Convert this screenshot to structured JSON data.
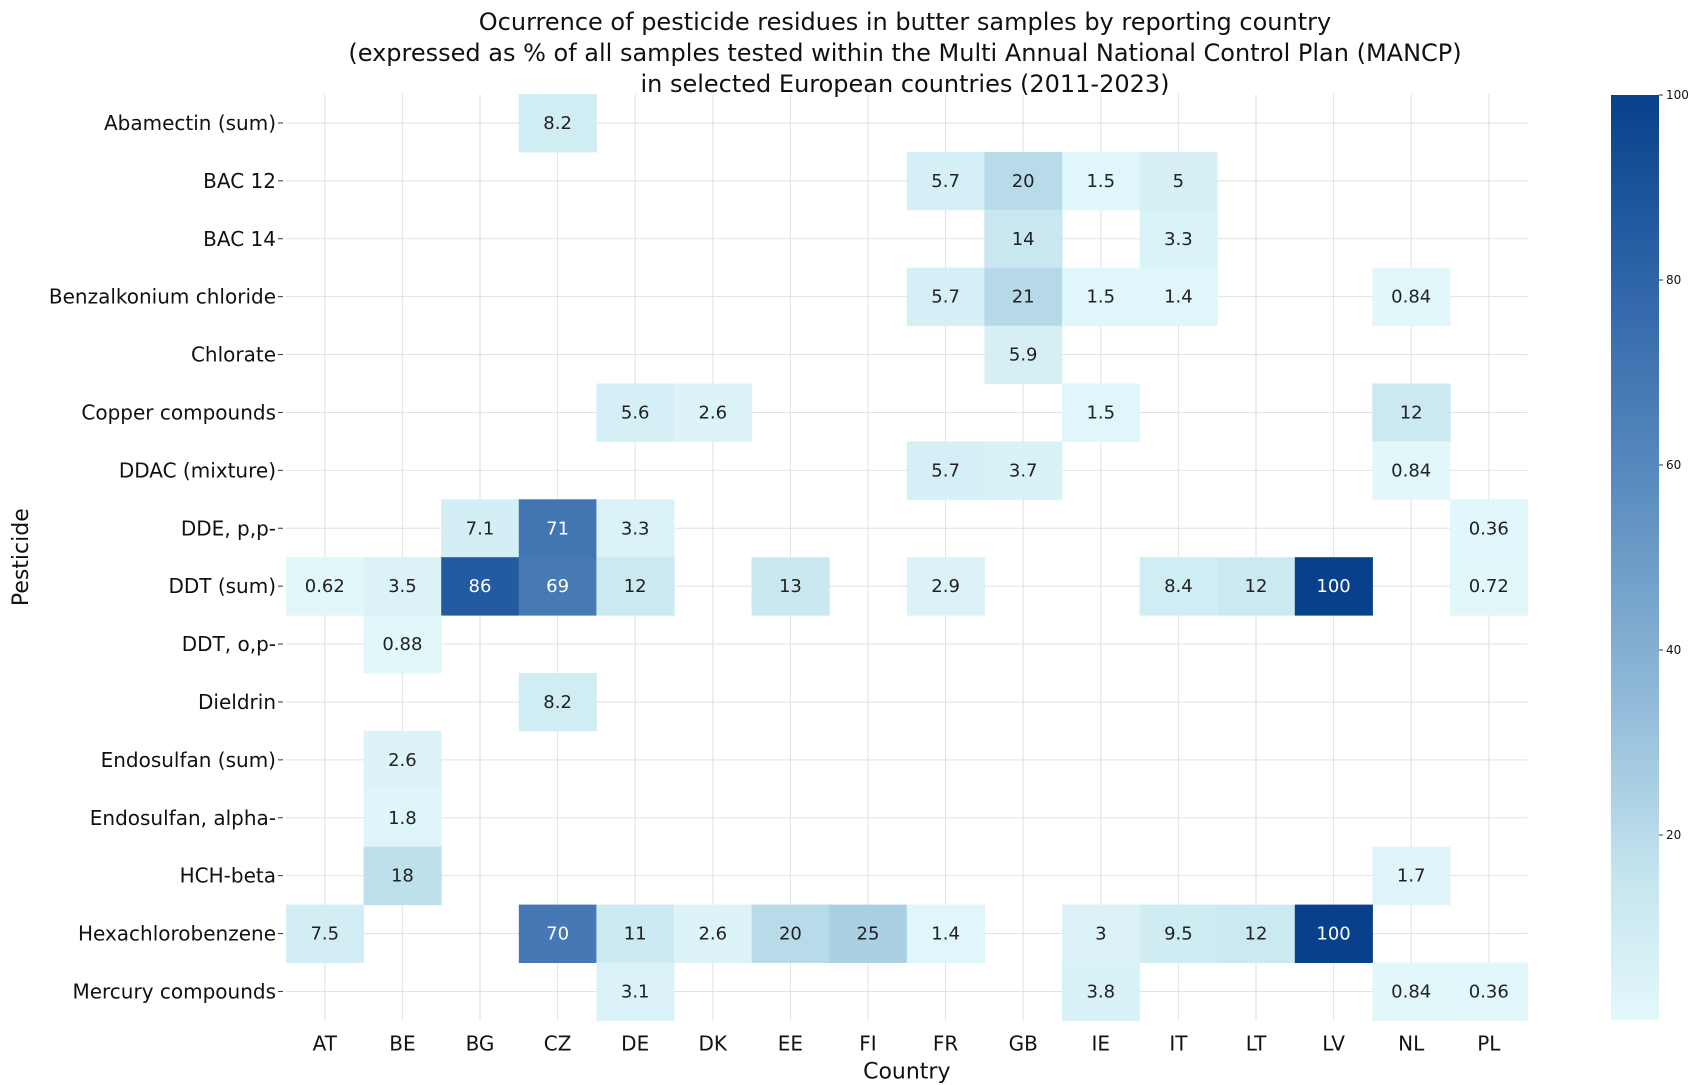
{
  "chart_data": {
    "type": "heatmap",
    "title": [
      "Ocurrence of pesticide residues in butter samples by reporting country",
      "(expressed as % of all samples tested within the Multi Annual National Control Plan (MANCP)",
      "in selected European countries (2011-2023)"
    ],
    "xlabel": "Country",
    "ylabel": "Pesticide",
    "x_categories": [
      "AT",
      "BE",
      "BG",
      "CZ",
      "DE",
      "DK",
      "EE",
      "FI",
      "FR",
      "GB",
      "IE",
      "IT",
      "LT",
      "LV",
      "NL",
      "PL"
    ],
    "y_categories": [
      "Abamectin (sum)",
      "BAC 12",
      "BAC 14",
      "Benzalkonium chloride",
      "Chlorate",
      "Copper compounds",
      "DDAC (mixture)",
      "DDE, p,p-",
      "DDT (sum)",
      "DDT, o,p-",
      "Dieldrin",
      "Endosulfan (sum)",
      "Endosulfan, alpha-",
      "HCH-beta",
      "Hexachlorobenzene",
      "Mercury compounds"
    ],
    "values": [
      [
        null,
        null,
        null,
        8.2,
        null,
        null,
        null,
        null,
        null,
        null,
        null,
        null,
        null,
        null,
        null,
        null
      ],
      [
        null,
        null,
        null,
        null,
        null,
        null,
        null,
        null,
        5.7,
        20,
        1.5,
        5,
        null,
        null,
        null,
        null
      ],
      [
        null,
        null,
        null,
        null,
        null,
        null,
        null,
        null,
        null,
        14,
        null,
        3.3,
        null,
        null,
        null,
        null
      ],
      [
        null,
        null,
        null,
        null,
        null,
        null,
        null,
        null,
        5.7,
        21,
        1.5,
        1.4,
        null,
        null,
        0.84,
        null
      ],
      [
        null,
        null,
        null,
        null,
        null,
        null,
        null,
        null,
        null,
        5.9,
        null,
        null,
        null,
        null,
        null,
        null
      ],
      [
        null,
        null,
        null,
        null,
        5.6,
        2.6,
        null,
        null,
        null,
        null,
        1.5,
        null,
        null,
        null,
        12,
        null
      ],
      [
        null,
        null,
        null,
        null,
        null,
        null,
        null,
        null,
        5.7,
        3.7,
        null,
        null,
        null,
        null,
        0.84,
        null
      ],
      [
        null,
        null,
        7.1,
        71,
        3.3,
        null,
        null,
        null,
        null,
        null,
        null,
        null,
        null,
        null,
        null,
        0.36
      ],
      [
        0.62,
        3.5,
        86,
        69,
        12,
        null,
        13,
        null,
        2.9,
        null,
        null,
        8.4,
        12,
        100,
        null,
        0.72
      ],
      [
        null,
        0.88,
        null,
        null,
        null,
        null,
        null,
        null,
        null,
        null,
        null,
        null,
        null,
        null,
        null,
        null
      ],
      [
        null,
        null,
        null,
        8.2,
        null,
        null,
        null,
        null,
        null,
        null,
        null,
        null,
        null,
        null,
        null,
        null
      ],
      [
        null,
        2.6,
        null,
        null,
        null,
        null,
        null,
        null,
        null,
        null,
        null,
        null,
        null,
        null,
        null,
        null
      ],
      [
        null,
        1.8,
        null,
        null,
        null,
        null,
        null,
        null,
        null,
        null,
        null,
        null,
        null,
        null,
        null,
        null
      ],
      [
        null,
        18,
        null,
        null,
        null,
        null,
        null,
        null,
        null,
        null,
        null,
        null,
        null,
        null,
        1.7,
        null
      ],
      [
        7.5,
        null,
        null,
        70,
        11,
        2.6,
        20,
        25,
        1.4,
        null,
        3,
        9.5,
        12,
        100,
        null,
        null
      ],
      [
        null,
        null,
        null,
        null,
        3.1,
        null,
        null,
        null,
        null,
        null,
        3.8,
        null,
        null,
        null,
        0.84,
        0.36
      ]
    ],
    "colorbar": {
      "min": 0,
      "max": 100,
      "ticks": [
        20,
        40,
        60,
        80,
        100
      ]
    },
    "colormap": "Blues",
    "colors": {
      "low": "#e3f8fb",
      "high": "#08408c"
    },
    "grid": true
  }
}
